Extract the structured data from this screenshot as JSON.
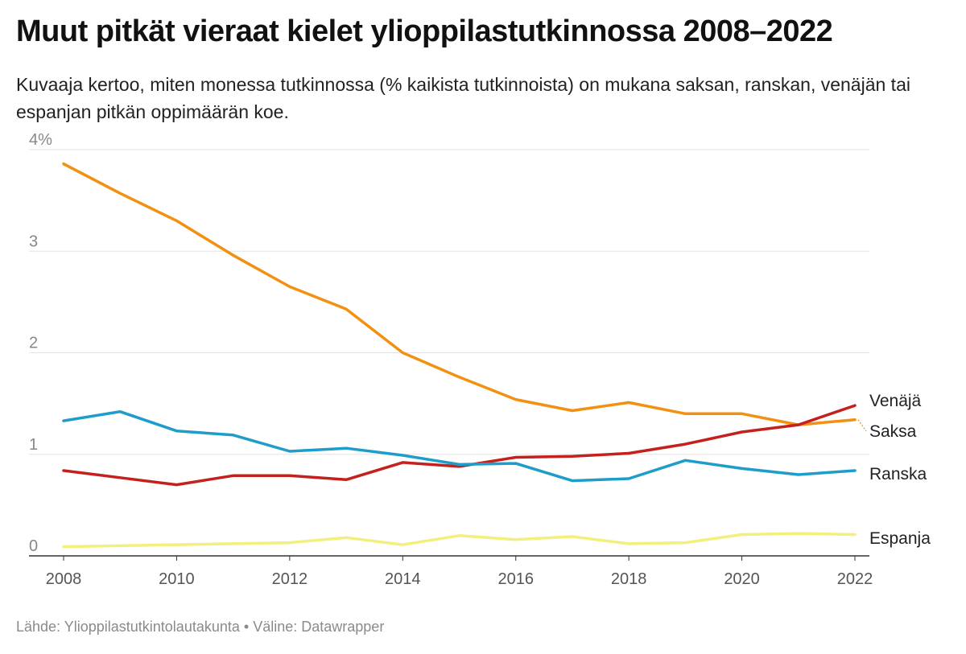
{
  "title": "Muut pitkät vieraat kielet ylioppilastutkinnossa 2008–2022",
  "subtitle": "Kuvaaja kertoo, miten monessa tutkinnossa (% kaikista tutkinnoista) on mukana saksan, ranskan, venäjän tai espanjan pitkän oppimäärän koe.",
  "footer": {
    "source_label": "Lähde: Ylioppilastutkintolautakunta",
    "separator": "•",
    "tool_label": "Väline: Datawrapper"
  },
  "chart_data": {
    "type": "line",
    "title": "Muut pitkät vieraat kielet ylioppilastutkinnossa 2008–2022",
    "xlabel": "",
    "ylabel": "",
    "x": [
      2008,
      2009,
      2010,
      2011,
      2012,
      2013,
      2014,
      2015,
      2016,
      2017,
      2018,
      2019,
      2020,
      2021,
      2022
    ],
    "xlim": [
      2008,
      2022
    ],
    "ylim": [
      0,
      4
    ],
    "x_ticks": [
      2008,
      2010,
      2012,
      2014,
      2016,
      2018,
      2020,
      2022
    ],
    "y_ticks": [
      {
        "value": 0,
        "label": "0"
      },
      {
        "value": 1,
        "label": "1"
      },
      {
        "value": 2,
        "label": "2"
      },
      {
        "value": 3,
        "label": "3"
      },
      {
        "value": 4,
        "label": "4%"
      }
    ],
    "grid": true,
    "legend": "direct labels at right end",
    "series": [
      {
        "name": "Saksa",
        "color": "#f29111",
        "values": [
          3.86,
          3.57,
          3.3,
          2.96,
          2.65,
          2.43,
          2.0,
          1.76,
          1.54,
          1.43,
          1.51,
          1.4,
          1.4,
          1.29,
          1.34
        ]
      },
      {
        "name": "Venäjä",
        "color": "#c4201e",
        "values": [
          0.84,
          0.77,
          0.7,
          0.79,
          0.79,
          0.75,
          0.92,
          0.88,
          0.97,
          0.98,
          1.01,
          1.1,
          1.22,
          1.29,
          1.48
        ]
      },
      {
        "name": "Ranska",
        "color": "#1e9cca",
        "values": [
          1.33,
          1.42,
          1.23,
          1.19,
          1.03,
          1.06,
          0.99,
          0.9,
          0.91,
          0.74,
          0.76,
          0.94,
          0.86,
          0.8,
          0.84
        ]
      },
      {
        "name": "Espanja",
        "color": "#f2f07c",
        "values": [
          0.09,
          0.1,
          0.11,
          0.12,
          0.13,
          0.18,
          0.11,
          0.2,
          0.16,
          0.19,
          0.12,
          0.13,
          0.21,
          0.22,
          0.21
        ]
      }
    ]
  }
}
